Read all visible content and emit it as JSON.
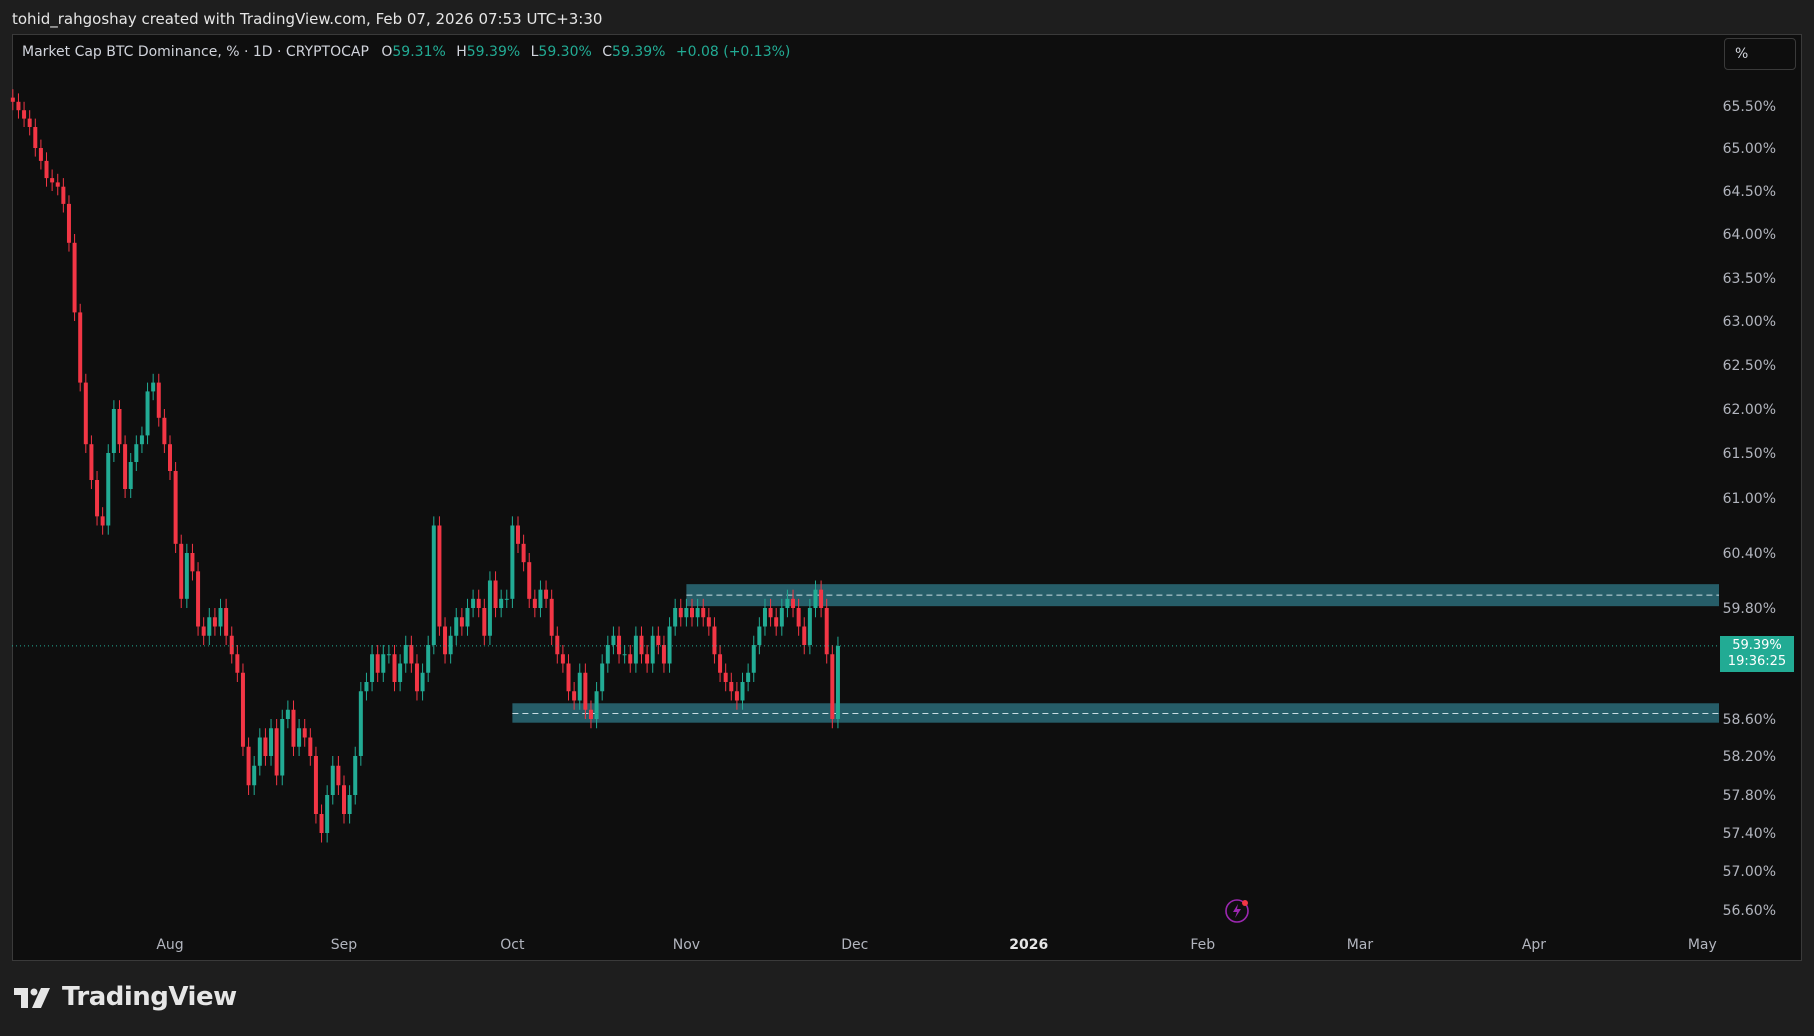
{
  "header": {
    "credit": "tohid_rahgoshay created with TradingView.com, Feb 07, 2026 07:53 UTC+3:30"
  },
  "legend": {
    "symbol": "Market Cap BTC Dominance, % · 1D · CRYPTOCAP",
    "o_label": "O",
    "o_value": "59.31%",
    "h_label": "H",
    "h_value": "59.39%",
    "l_label": "L",
    "l_value": "59.30%",
    "c_label": "C",
    "c_value": "59.39%",
    "change": "+0.08 (+0.13%)"
  },
  "scale_button": {
    "label": "%"
  },
  "price_badge": {
    "price": "59.39%",
    "countdown": "19:36:25"
  },
  "brand": {
    "name": "TradingView"
  },
  "colors": {
    "up": "#22ab94",
    "down": "#f23645",
    "zone_fill": "#2a6b78",
    "background": "#0e0e0e",
    "frame": "#1e1e1e",
    "text": "#d1d4dc"
  },
  "icons": [
    "tradingview-logo-icon",
    "lightning-icon"
  ],
  "chart_data": {
    "type": "candlestick",
    "title": "Market Cap BTC Dominance, %",
    "interval": "1D",
    "source": "CRYPTOCAP",
    "y_ticks": [
      "65.50%",
      "65.00%",
      "64.50%",
      "64.00%",
      "63.50%",
      "63.00%",
      "62.50%",
      "62.00%",
      "61.50%",
      "61.00%",
      "60.40%",
      "59.80%",
      "58.60%",
      "58.20%",
      "57.80%",
      "57.40%",
      "57.00%",
      "56.60%"
    ],
    "y_tick_values": [
      65.5,
      65.0,
      64.5,
      64.0,
      63.5,
      63.0,
      62.5,
      62.0,
      61.5,
      61.0,
      60.4,
      59.8,
      58.6,
      58.2,
      57.8,
      57.4,
      57.0,
      56.6
    ],
    "x_ticks": [
      "Aug",
      "Sep",
      "Oct",
      "Nov",
      "Dec",
      "2026",
      "Feb",
      "Mar",
      "Apr",
      "May"
    ],
    "x_tick_dates": [
      "2025-08-01",
      "2025-09-01",
      "2025-10-01",
      "2025-11-01",
      "2025-12-01",
      "2026-01-01",
      "2026-02-01",
      "2026-03-01",
      "2026-04-01",
      "2026-05-01"
    ],
    "ylim": [
      56.3,
      65.9
    ],
    "start_date": "2025-07-04",
    "current_price": 59.39,
    "zones": [
      {
        "name": "resistance",
        "from": 59.82,
        "to": 60.06,
        "mid": 59.94,
        "start": "2025-11-01"
      },
      {
        "name": "support",
        "from": 58.56,
        "to": 58.77,
        "mid": 58.66,
        "start": "2025-10-01"
      }
    ],
    "close": [
      65.55,
      65.45,
      65.35,
      65.25,
      65.0,
      64.85,
      64.65,
      64.6,
      64.55,
      64.35,
      63.9,
      63.1,
      62.3,
      61.6,
      61.2,
      60.8,
      60.7,
      61.5,
      62.0,
      61.6,
      61.1,
      61.4,
      61.6,
      61.7,
      62.2,
      62.3,
      61.9,
      61.6,
      61.3,
      60.5,
      59.9,
      60.4,
      60.2,
      59.6,
      59.5,
      59.7,
      59.6,
      59.8,
      59.5,
      59.3,
      59.1,
      58.3,
      57.9,
      58.1,
      58.4,
      58.2,
      58.5,
      58.0,
      58.6,
      58.7,
      58.3,
      58.5,
      58.4,
      58.2,
      57.6,
      57.4,
      57.8,
      58.1,
      57.9,
      57.6,
      57.8,
      58.2,
      58.9,
      59.0,
      59.3,
      59.1,
      59.3,
      59.3,
      59.0,
      59.2,
      59.4,
      59.2,
      58.9,
      59.1,
      59.4,
      60.7,
      59.6,
      59.3,
      59.5,
      59.7,
      59.6,
      59.8,
      59.9,
      59.8,
      59.5,
      60.1,
      59.8,
      59.9,
      59.9,
      60.7,
      60.5,
      60.3,
      59.9,
      59.8,
      60.0,
      59.9,
      59.5,
      59.3,
      59.2,
      58.9,
      58.8,
      59.1,
      58.7,
      58.6,
      58.9,
      59.2,
      59.4,
      59.5,
      59.3,
      59.3,
      59.2,
      59.5,
      59.3,
      59.2,
      59.5,
      59.4,
      59.2,
      59.6,
      59.8,
      59.7,
      59.8,
      59.7,
      59.8,
      59.7,
      59.6,
      59.3,
      59.1,
      59.0,
      58.9,
      58.8,
      59.0,
      59.1,
      59.4,
      59.6,
      59.8,
      59.7,
      59.6,
      59.8,
      59.9,
      59.8,
      59.6,
      59.4,
      59.8,
      60.0,
      59.8,
      59.3,
      58.6,
      59.39
    ]
  }
}
